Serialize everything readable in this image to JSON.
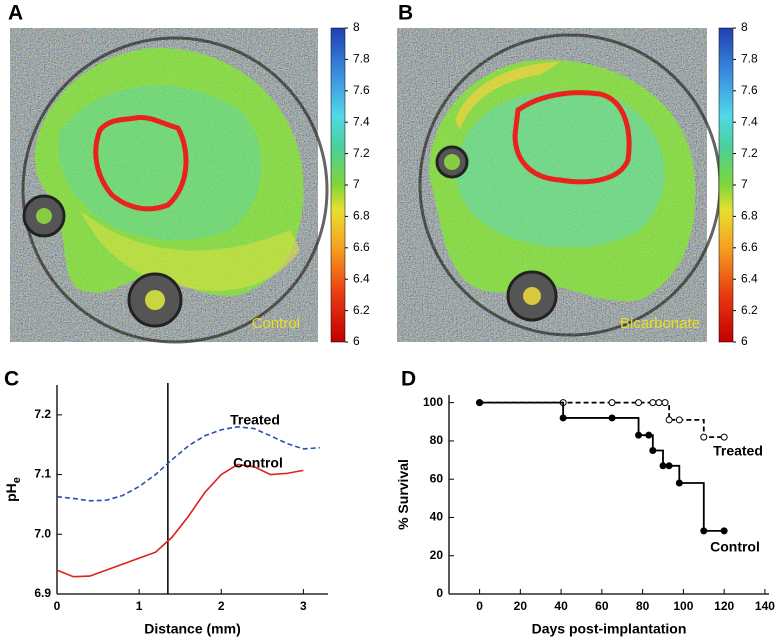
{
  "chart_data": [
    {
      "type": "image",
      "panel_label": "A",
      "annotation": "Control",
      "colorbar_lim": [
        6,
        8
      ],
      "colorbar_ticks": [
        6,
        6.2,
        6.4,
        6.6,
        6.8,
        7,
        7.2,
        7.4,
        7.6,
        7.8,
        8
      ]
    },
    {
      "type": "image",
      "panel_label": "B",
      "annotation": "Bicarbonate",
      "colorbar_lim": [
        6,
        8
      ],
      "colorbar_ticks": [
        6,
        6.2,
        6.4,
        6.6,
        6.8,
        7,
        7.2,
        7.4,
        7.6,
        7.8,
        8
      ]
    },
    {
      "type": "line",
      "panel_label": "C",
      "xlabel": "Distance (mm)",
      "ylabel": "pH",
      "ylabel_sub": "e",
      "x": [
        0,
        0.2,
        0.4,
        0.6,
        0.8,
        1.0,
        1.2,
        1.4,
        1.6,
        1.8,
        2.0,
        2.2,
        2.4,
        2.6,
        2.8,
        3.0,
        3.2
      ],
      "xlim": [
        0,
        3.3
      ],
      "xticks": [
        0,
        1,
        2,
        3
      ],
      "ylim": [
        6.9,
        7.25
      ],
      "yticks": [
        {
          "value": 6.9,
          "label": "6.9"
        },
        {
          "value": 7,
          "label": "7.0"
        },
        7.1,
        7.2
      ],
      "vline": 1.35,
      "series": [
        {
          "name": "Treated",
          "color": "#2b4fb0",
          "style": "dashed",
          "values": [
            7.063,
            7.06,
            7.056,
            7.057,
            7.065,
            7.08,
            7.1,
            7.125,
            7.148,
            7.165,
            7.175,
            7.18,
            7.177,
            7.165,
            7.152,
            7.143,
            7.145
          ]
        },
        {
          "name": "Control",
          "color": "#e0201b",
          "style": "solid",
          "values": [
            6.94,
            6.929,
            6.93,
            6.94,
            6.95,
            6.96,
            6.97,
            6.995,
            7.03,
            7.07,
            7.1,
            7.117,
            7.113,
            7.1,
            7.102,
            7.107,
            null
          ]
        }
      ]
    },
    {
      "type": "step",
      "panel_label": "D",
      "xlabel": "Days post-implantation",
      "ylabel": "% Survival",
      "xlim": [
        -15,
        142
      ],
      "xticks": [
        0,
        20,
        40,
        60,
        80,
        100,
        120,
        140
      ],
      "ylim": [
        0,
        104
      ],
      "yticks": [
        0,
        20,
        40,
        60,
        80,
        100
      ],
      "series": [
        {
          "name": "Treated",
          "color": "#000000",
          "style": "dashed",
          "marker": "open",
          "x": [
            0,
            41,
            65,
            78,
            85,
            88,
            91,
            93,
            98,
            110,
            120
          ],
          "values": [
            100,
            100,
            100,
            100,
            100,
            100,
            100,
            91,
            91,
            82,
            82
          ]
        },
        {
          "name": "Control",
          "color": "#000000",
          "style": "solid",
          "marker": "filled",
          "x": [
            0,
            41,
            65,
            78,
            83,
            85,
            90,
            93,
            98,
            110,
            120
          ],
          "values": [
            100,
            92,
            92,
            83,
            83,
            75,
            67,
            67,
            58,
            33,
            33
          ]
        }
      ]
    }
  ]
}
